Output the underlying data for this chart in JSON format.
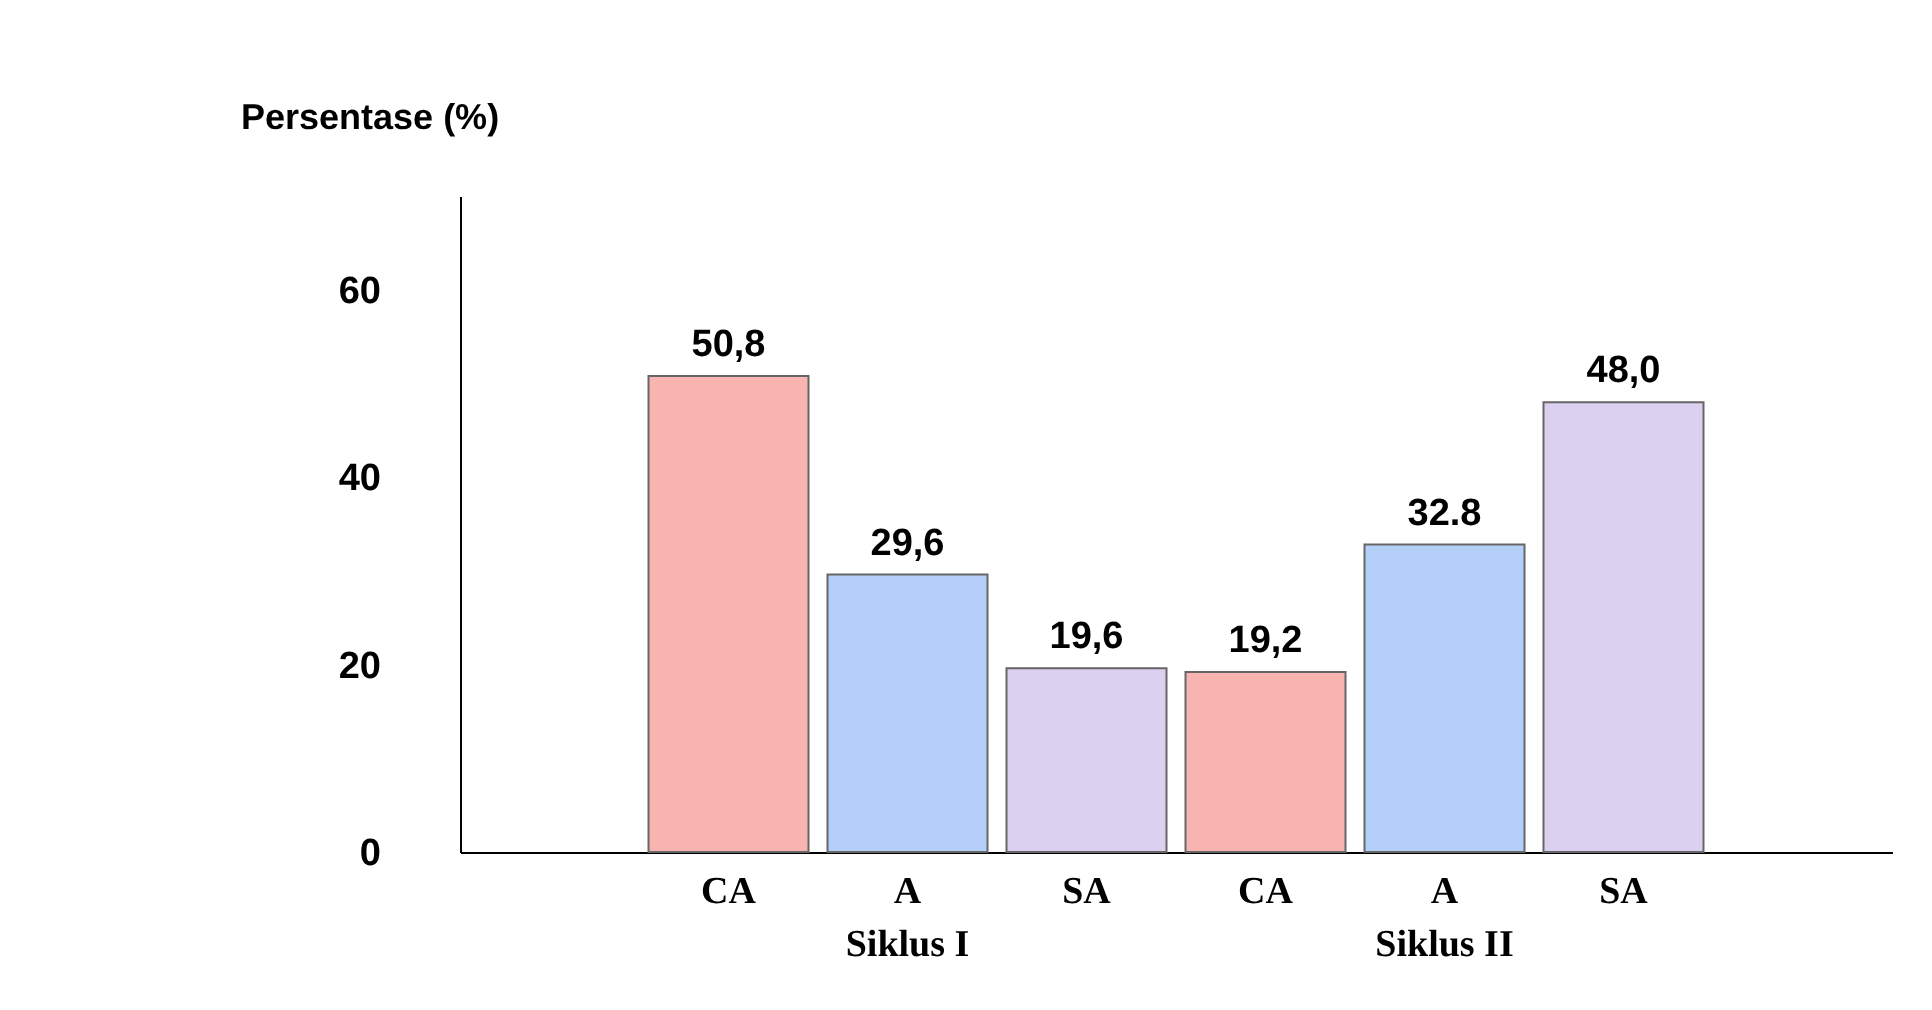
{
  "chart_data": {
    "type": "bar",
    "ylabel": "Persentase (%)",
    "categories": [
      "CA",
      "A",
      "SA",
      "CA",
      "A",
      "SA"
    ],
    "values": [
      50.8,
      29.6,
      19.6,
      19.2,
      32.8,
      48.0
    ],
    "value_labels": [
      "50,8",
      "29,6",
      "19,6",
      "19,2",
      "32.8",
      "48,0"
    ],
    "colors": [
      "#f7b4b0",
      "#b4d0f8",
      "#dcd0f0",
      "#f7b4b0",
      "#b4d0f8",
      "#dcd0f0"
    ],
    "ylim": [
      0,
      70
    ],
    "yticks": [
      0,
      20,
      40,
      60
    ],
    "grid": false,
    "annotations": [
      "Siklus I",
      "Siklus II"
    ]
  }
}
